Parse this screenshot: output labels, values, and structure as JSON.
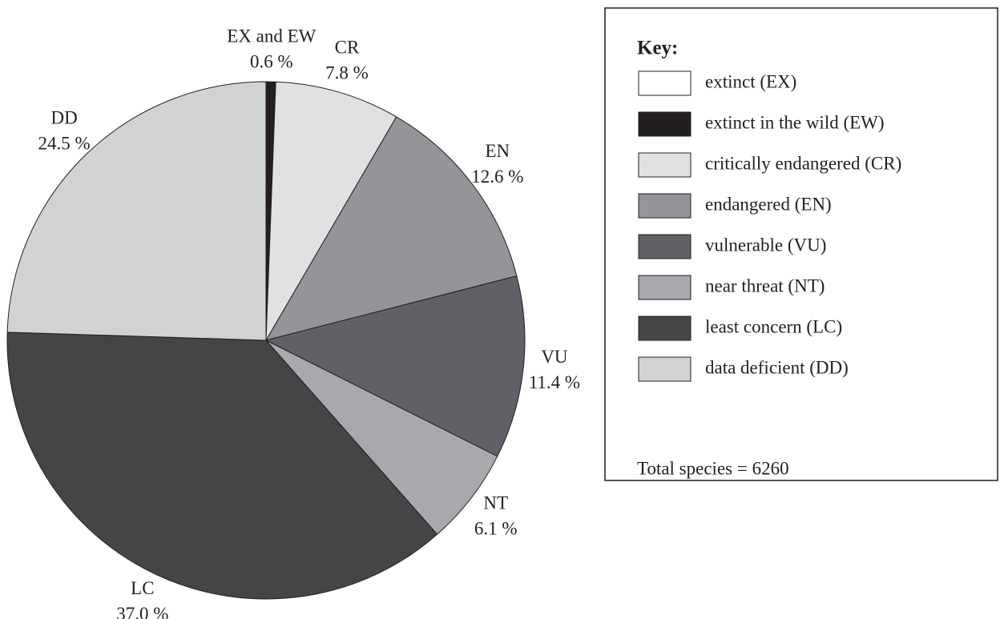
{
  "chart_data": {
    "type": "pie",
    "categories": [
      "EX and EW",
      "CR",
      "EN",
      "VU",
      "NT",
      "LC",
      "DD"
    ],
    "values": [
      0.6,
      7.8,
      12.6,
      11.4,
      6.1,
      37.0,
      24.5
    ],
    "value_labels": [
      "0.6 %",
      "7.8 %",
      "12.6 %",
      "11.4 %",
      "6.1 %",
      "37.0 %",
      "24.5 %"
    ],
    "colors": [
      "#231f20",
      "#e0e1e3",
      "#939598",
      "#606166",
      "#a7a9ac",
      "#454547",
      "#d1d2d4"
    ],
    "legend_title": "Key:",
    "legend": [
      {
        "name": "extinct (EX)",
        "color": "#ffffff"
      },
      {
        "name": "extinct in the wild (EW)",
        "color": "#231f20"
      },
      {
        "name": "critically endangered (CR)",
        "color": "#e0e1e3"
      },
      {
        "name": "endangered (EN)",
        "color": "#939598"
      },
      {
        "name": "vulnerable (VU)",
        "color": "#606166"
      },
      {
        "name": "near threat (NT)",
        "color": "#a7a9ac"
      },
      {
        "name": "least concern (LC)",
        "color": "#454547"
      },
      {
        "name": "data deficient (DD)",
        "color": "#d1d2d4"
      }
    ],
    "note": "Total species = 6260"
  }
}
